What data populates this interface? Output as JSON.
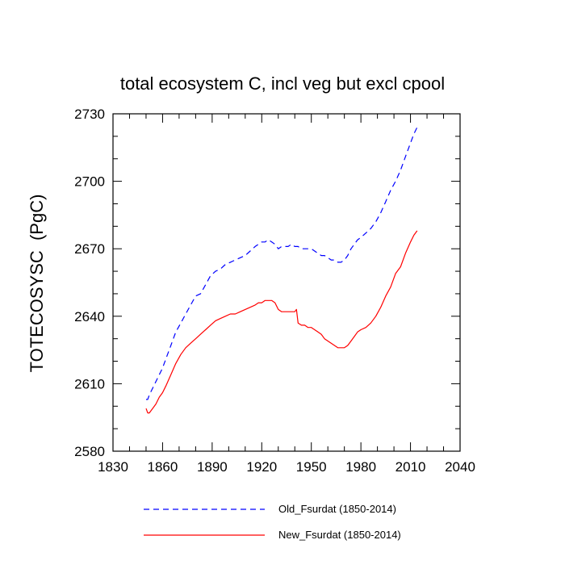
{
  "chart_data": {
    "type": "line",
    "title": "total ecosystem C, incl veg but excl cpool",
    "xlabel": "",
    "ylabel": "TOTECOSYSC  (PgC)",
    "xlim": [
      1830,
      2040
    ],
    "ylim": [
      2580,
      2730
    ],
    "xticks": [
      1830,
      1860,
      1890,
      1920,
      1950,
      1980,
      2010,
      2040
    ],
    "yticks": [
      2580,
      2610,
      2640,
      2670,
      2700,
      2730
    ],
    "grid": false,
    "legend_position": "bottom",
    "series": [
      {
        "name": "Old_Fsurdat (1850-2014)",
        "color": "#0000ff",
        "dash": "dashed",
        "x": [
          1850,
          1851,
          1852,
          1854,
          1856,
          1858,
          1860,
          1862,
          1865,
          1868,
          1871,
          1874,
          1877,
          1880,
          1883,
          1886,
          1889,
          1892,
          1895,
          1898,
          1901,
          1904,
          1907,
          1910,
          1913,
          1916,
          1918,
          1920,
          1922,
          1924,
          1926,
          1928,
          1930,
          1932,
          1934,
          1936,
          1938,
          1940,
          1942,
          1944,
          1946,
          1948,
          1950,
          1952,
          1954,
          1956,
          1958,
          1960,
          1962,
          1964,
          1966,
          1968,
          1970,
          1972,
          1974,
          1976,
          1978,
          1980,
          1983,
          1986,
          1989,
          1992,
          1995,
          1998,
          2001,
          2004,
          2007,
          2010,
          2012,
          2014
        ],
        "y": [
          2603,
          2603,
          2605,
          2608,
          2611,
          2614,
          2617,
          2621,
          2627,
          2633,
          2637,
          2641,
          2645,
          2649,
          2650,
          2654,
          2658,
          2660,
          2661,
          2663,
          2664,
          2665,
          2666,
          2667,
          2669,
          2671,
          2672,
          2673,
          2673,
          2674,
          2673,
          2672,
          2670,
          2671,
          2671,
          2671,
          2672,
          2671,
          2671,
          2670,
          2670,
          2670,
          2670,
          2669,
          2668,
          2667,
          2667,
          2666,
          2665,
          2665,
          2664,
          2664,
          2665,
          2667,
          2670,
          2672,
          2674,
          2675,
          2677,
          2679,
          2682,
          2686,
          2691,
          2696,
          2700,
          2705,
          2711,
          2717,
          2721,
          2724
        ]
      },
      {
        "name": "New_Fsurdat (1850-2014)",
        "color": "#ff0000",
        "dash": "solid",
        "x": [
          1850,
          1851,
          1852,
          1854,
          1856,
          1858,
          1860,
          1862,
          1865,
          1868,
          1871,
          1874,
          1877,
          1880,
          1883,
          1886,
          1889,
          1892,
          1895,
          1898,
          1901,
          1904,
          1907,
          1910,
          1913,
          1916,
          1918,
          1920,
          1922,
          1924,
          1926,
          1928,
          1930,
          1932,
          1934,
          1936,
          1938,
          1940,
          1941,
          1942,
          1944,
          1946,
          1948,
          1950,
          1952,
          1954,
          1956,
          1958,
          1960,
          1962,
          1964,
          1966,
          1968,
          1970,
          1972,
          1974,
          1976,
          1978,
          1980,
          1983,
          1986,
          1989,
          1992,
          1995,
          1998,
          2001,
          2004,
          2007,
          2010,
          2012,
          2014
        ],
        "y": [
          2599,
          2597,
          2597,
          2599,
          2601,
          2604,
          2606,
          2609,
          2614,
          2619,
          2623,
          2626,
          2628,
          2630,
          2632,
          2634,
          2636,
          2638,
          2639,
          2640,
          2641,
          2641,
          2642,
          2643,
          2644,
          2645,
          2646,
          2646,
          2647,
          2647,
          2647,
          2646,
          2643,
          2642,
          2642,
          2642,
          2642,
          2642,
          2643,
          2637,
          2636,
          2636,
          2635,
          2635,
          2634,
          2633,
          2632,
          2630,
          2629,
          2628,
          2627,
          2626,
          2626,
          2626,
          2627,
          2629,
          2631,
          2633,
          2634,
          2635,
          2637,
          2640,
          2644,
          2649,
          2653,
          2659,
          2662,
          2668,
          2673,
          2676,
          2678
        ]
      }
    ]
  }
}
